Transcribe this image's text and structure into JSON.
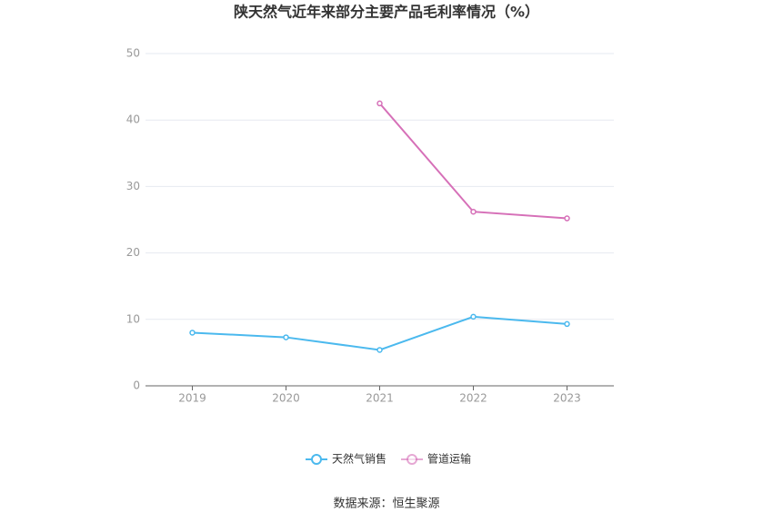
{
  "chart_data": {
    "type": "line",
    "title": "陕天然气近年来部分主要产品毛利率情况（%）",
    "categories": [
      "2019",
      "2020",
      "2021",
      "2022",
      "2023"
    ],
    "series": [
      {
        "name": "天然气销售",
        "color": "#4bb9ee",
        "values": [
          8.0,
          7.3,
          5.4,
          10.4,
          9.3
        ]
      },
      {
        "name": "管道运输",
        "color": "#d670b8",
        "values": [
          null,
          null,
          42.5,
          26.2,
          25.2
        ]
      }
    ],
    "ylim": [
      0,
      50
    ],
    "yticks": [
      0,
      10,
      20,
      30,
      40,
      50
    ],
    "grid": true,
    "source": "数据来源：恒生聚源"
  }
}
